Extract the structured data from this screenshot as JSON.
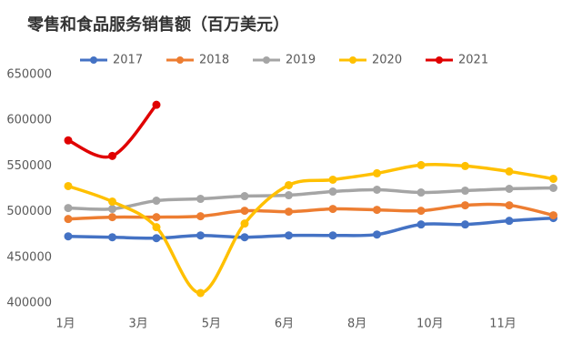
{
  "chart_data": {
    "type": "line",
    "title": "零售和食品服务销售额（百万美元）",
    "categories": [
      null,
      null,
      null,
      null,
      null,
      null,
      null,
      null,
      null,
      null,
      null,
      null
    ],
    "xtick_labels": [
      "1月",
      "3月",
      "5月",
      "6月",
      "8月",
      "10月",
      "11月"
    ],
    "series": [
      {
        "name": "2017",
        "color": "#4472c4",
        "values": [
          473000,
          472000,
          471000,
          474000,
          472000,
          474000,
          474000,
          475000,
          486000,
          486000,
          490000,
          493000
        ]
      },
      {
        "name": "2018",
        "color": "#ed7d31",
        "values": [
          492000,
          494000,
          494000,
          495000,
          501000,
          500000,
          503000,
          502000,
          501000,
          507000,
          507000,
          496000
        ]
      },
      {
        "name": "2019",
        "color": "#a5a5a5",
        "values": [
          504000,
          503000,
          512000,
          514000,
          517000,
          518000,
          522000,
          524000,
          521000,
          523000,
          525000,
          526000
        ]
      },
      {
        "name": "2020",
        "color": "#ffc000",
        "values": [
          528000,
          511000,
          483000,
          411000,
          487000,
          529000,
          535000,
          542000,
          551000,
          550000,
          544000,
          536000
        ]
      },
      {
        "name": "2021",
        "color": "#e00000",
        "values": [
          578000,
          561000,
          617000,
          null,
          null,
          null,
          null,
          null,
          null,
          null,
          null,
          null
        ]
      }
    ],
    "ylim": [
      400000,
      650000
    ],
    "yticks": [
      400000,
      450000,
      500000,
      550000,
      600000,
      650000
    ],
    "legend": "top",
    "smooth": true
  }
}
